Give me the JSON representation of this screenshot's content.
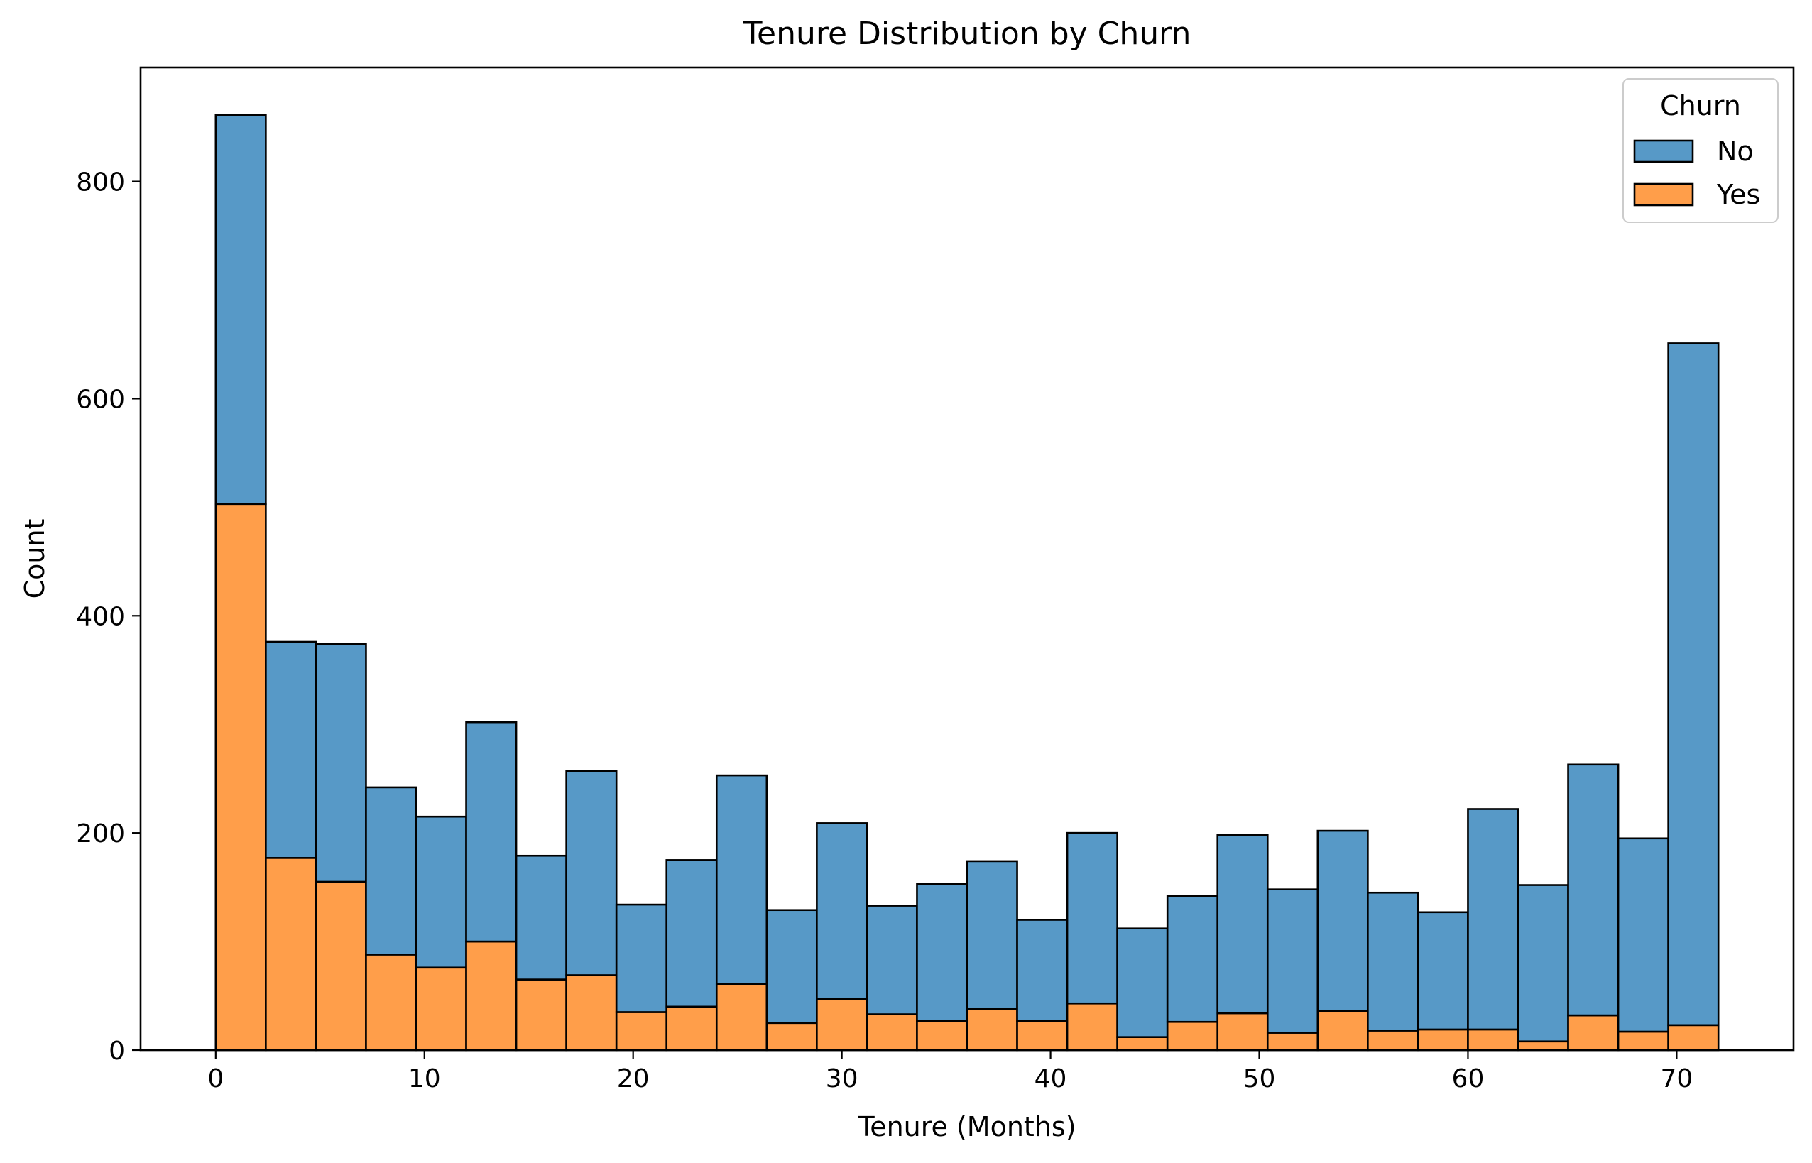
{
  "chart_data": {
    "type": "bar",
    "stacked": true,
    "histogram": true,
    "title": "Tenure Distribution by Churn",
    "xlabel": "Tenure (Months)",
    "ylabel": "Count",
    "xlim": [
      -3.6,
      75.6
    ],
    "ylim": [
      0,
      905
    ],
    "x_ticks": [
      0,
      10,
      20,
      30,
      40,
      50,
      60,
      70
    ],
    "x_tick_labels": [
      "0",
      "10",
      "20",
      "30",
      "40",
      "50",
      "60",
      "70"
    ],
    "y_ticks": [
      0,
      200,
      400,
      600,
      800
    ],
    "y_tick_labels": [
      "0",
      "200",
      "400",
      "600",
      "800"
    ],
    "bin_edges": [
      0,
      2.4,
      4.8,
      7.2,
      9.6,
      12.0,
      14.4,
      16.8,
      19.2,
      21.6,
      24.0,
      26.4,
      28.8,
      31.2,
      33.6,
      36.0,
      38.4,
      40.8,
      43.2,
      45.6,
      48.0,
      50.4,
      52.8,
      55.2,
      57.6,
      60.0,
      62.4,
      64.8,
      67.2,
      69.6,
      72.0
    ],
    "series": [
      {
        "name": "Yes",
        "color": "#ff9e4a",
        "values": [
          503,
          177,
          155,
          88,
          76,
          100,
          65,
          69,
          35,
          40,
          61,
          25,
          47,
          33,
          27,
          38,
          27,
          43,
          12,
          26,
          34,
          16,
          36,
          18,
          19,
          19,
          8,
          32,
          17,
          23
        ]
      },
      {
        "name": "No",
        "color": "#5799c7",
        "values": [
          358,
          199,
          219,
          154,
          139,
          202,
          114,
          188,
          99,
          135,
          192,
          104,
          162,
          100,
          126,
          136,
          93,
          157,
          100,
          116,
          164,
          132,
          166,
          127,
          108,
          203,
          144,
          231,
          178,
          628
        ]
      }
    ],
    "legend": {
      "title": "Churn",
      "placement": "top-right",
      "entries": [
        {
          "label": "No",
          "color": "#5799c7"
        },
        {
          "label": "Yes",
          "color": "#ff9e4a"
        }
      ]
    },
    "grid": false
  }
}
